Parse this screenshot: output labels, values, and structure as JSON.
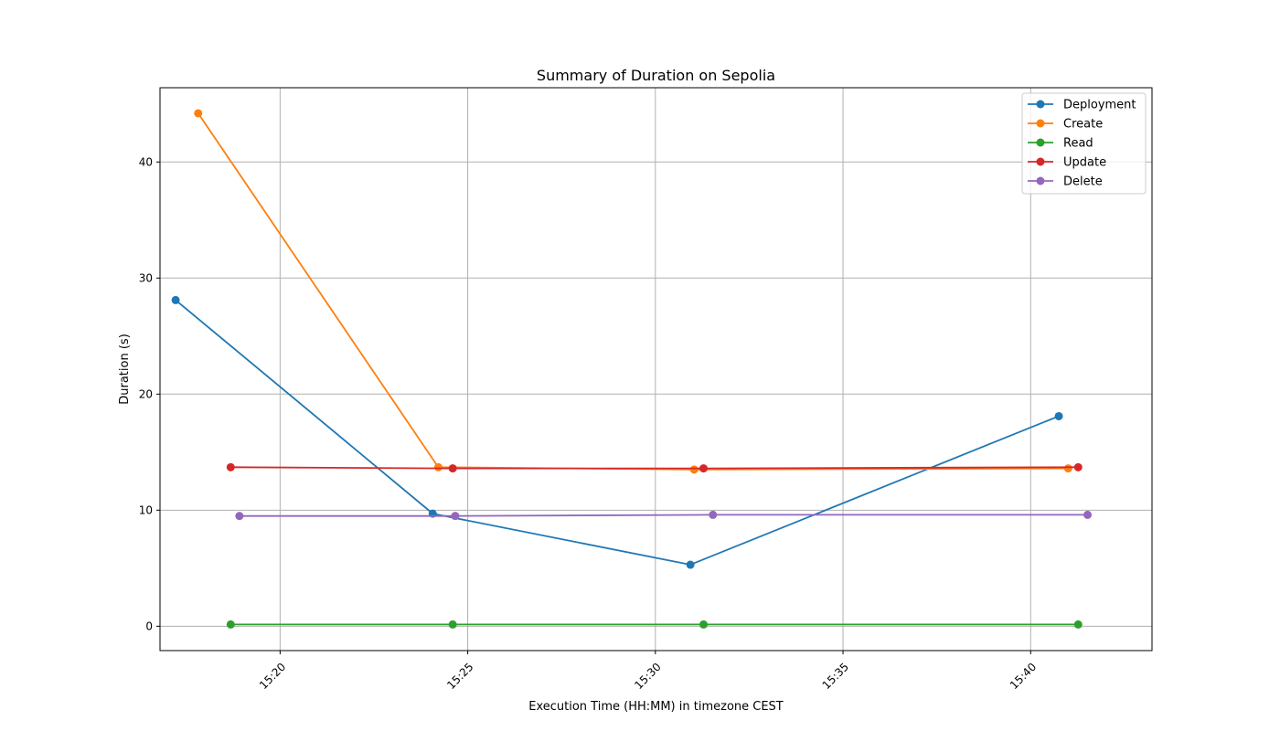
{
  "chart_data": {
    "type": "line",
    "title": "Summary of Duration on Sepolia",
    "xlabel": "Execution Time (HH:MM) in timezone CEST",
    "ylabel": "Duration (s)",
    "x_ticks": [
      "15:20",
      "15:25",
      "15:30",
      "15:35",
      "15:40"
    ],
    "y_ticks": [
      "0",
      "10",
      "20",
      "30",
      "40"
    ],
    "xlim": [
      "15:16:48",
      "15:43:14"
    ],
    "ylim": [
      -2.1,
      46.4
    ],
    "grid": true,
    "legend_position": "top-right",
    "series": [
      {
        "name": "Deployment",
        "color": "#1f77b4",
        "points": [
          [
            "15:17:13",
            28.1
          ],
          [
            "15:24:04",
            9.7
          ],
          [
            "15:30:56",
            5.3
          ],
          [
            "15:40:45",
            18.1
          ]
        ]
      },
      {
        "name": "Create",
        "color": "#ff7f0e",
        "points": [
          [
            "15:17:49",
            44.2
          ],
          [
            "15:24:13",
            13.7
          ],
          [
            "15:31:02",
            13.5
          ],
          [
            "15:41:00",
            13.6
          ]
        ]
      },
      {
        "name": "Read",
        "color": "#2ca02c",
        "points": [
          [
            "15:18:41",
            0.15
          ],
          [
            "15:24:36",
            0.15
          ],
          [
            "15:31:17",
            0.15
          ],
          [
            "15:41:16",
            0.15
          ]
        ]
      },
      {
        "name": "Update",
        "color": "#d62728",
        "points": [
          [
            "15:18:41",
            13.7
          ],
          [
            "15:24:36",
            13.6
          ],
          [
            "15:31:17",
            13.6
          ],
          [
            "15:41:16",
            13.7
          ]
        ]
      },
      {
        "name": "Delete",
        "color": "#9467bd",
        "points": [
          [
            "15:18:55",
            9.5
          ],
          [
            "15:24:40",
            9.5
          ],
          [
            "15:31:32",
            9.6
          ],
          [
            "15:41:31",
            9.6
          ]
        ]
      }
    ]
  }
}
